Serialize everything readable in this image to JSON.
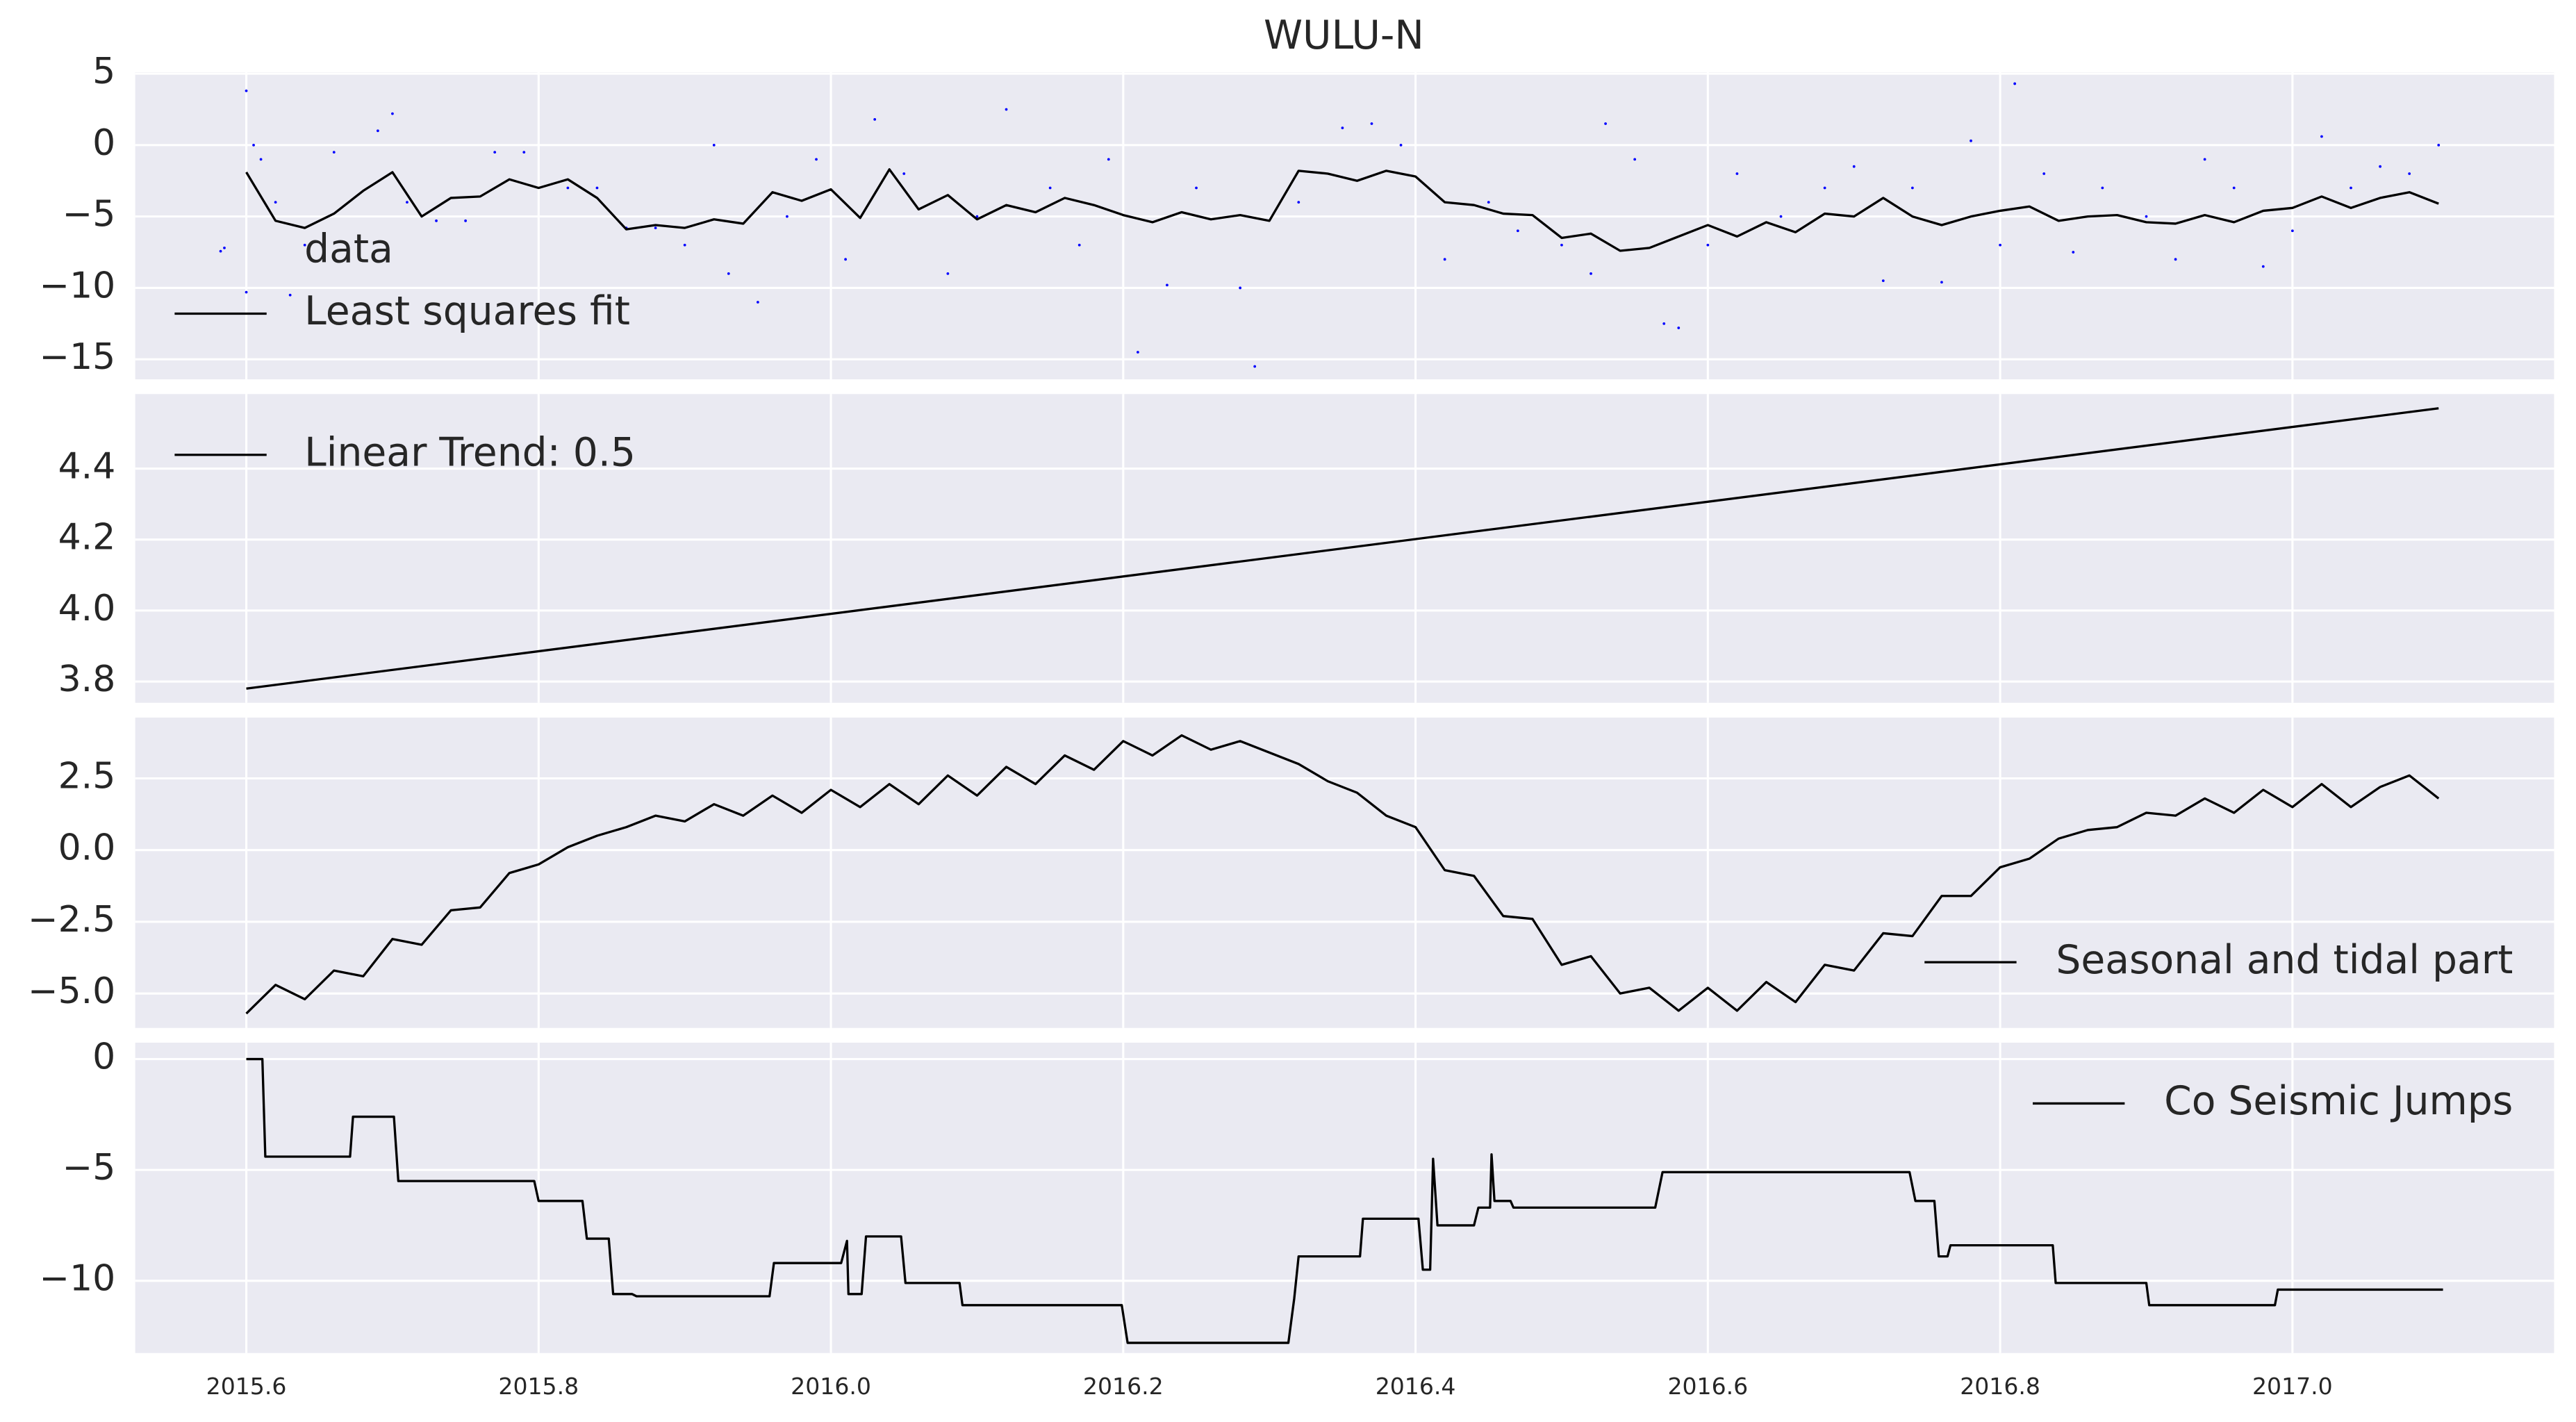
{
  "chart_data": [
    {
      "type": "line",
      "title": "WULU-N",
      "xlim": [
        2015.524,
        2017.179
      ],
      "ylim": [
        -16.4,
        5.1
      ],
      "yticks": [
        5,
        0,
        {
          "value": -5,
          "label": "−5"
        },
        {
          "value": -10,
          "label": "−10"
        },
        {
          "value": -15,
          "label": "−15"
        }
      ],
      "grid": true,
      "legend": "lower left",
      "series": [
        {
          "name": "data",
          "type": "scatter",
          "color": "#0000ff",
          "x": [
            2015.585,
            2015.6,
            2015.6,
            2015.605,
            2015.61,
            2015.62,
            2015.63,
            2015.64,
            2015.66,
            2015.67,
            2015.69,
            2015.7,
            2015.71,
            2015.73,
            2015.75,
            2015.77,
            2015.79,
            2015.82,
            2015.84,
            2015.86,
            2015.88,
            2015.9,
            2015.92,
            2015.93,
            2015.95,
            2015.97,
            2015.99,
            2016.01,
            2016.03,
            2016.05,
            2016.08,
            2016.1,
            2016.12,
            2016.15,
            2016.17,
            2016.19,
            2016.21,
            2016.23,
            2016.25,
            2016.28,
            2016.29,
            2016.32,
            2016.35,
            2016.37,
            2016.39,
            2016.42,
            2016.45,
            2016.47,
            2016.5,
            2016.52,
            2016.53,
            2016.55,
            2016.57,
            2016.58,
            2016.6,
            2016.62,
            2016.65,
            2016.68,
            2016.7,
            2016.72,
            2016.74,
            2016.76,
            2016.78,
            2016.8,
            2016.81,
            2016.83,
            2016.85,
            2016.87,
            2016.9,
            2016.92,
            2016.94,
            2016.96,
            2016.98,
            2017.0,
            2017.02,
            2017.04,
            2017.06,
            2017.08,
            2017.1
          ],
          "values": [
            -7.2,
            3.8,
            -10.3,
            0,
            -1,
            -4,
            -10.5,
            -7,
            -0.5,
            -8,
            1,
            2.2,
            -4,
            -5.3,
            -5.3,
            -0.5,
            -0.5,
            -3,
            -3,
            -5.8,
            -5.8,
            -7,
            0,
            -9,
            -11,
            -5,
            -1,
            -8,
            1.8,
            -2,
            -9,
            -5,
            2.5,
            -3,
            -7,
            -1,
            -14.5,
            -9.8,
            -3,
            -10,
            -15.5,
            -4,
            1.2,
            1.5,
            0,
            -8,
            -4,
            -6,
            -7,
            -9,
            1.5,
            -1,
            -12.5,
            -12.8,
            -7,
            -2,
            -5,
            -3,
            -1.5,
            -9.5,
            -3,
            -9.6,
            0.3,
            -7,
            4.3,
            -2,
            -7.5,
            -3,
            -5,
            -8,
            -1,
            -3,
            -8.5,
            -6,
            0.6,
            -3,
            -1.5,
            -2,
            0
          ]
        },
        {
          "name": "Least squares fit",
          "color": "#000000",
          "x": [
            2015.6,
            2015.62,
            2015.64,
            2015.66,
            2015.68,
            2015.7,
            2015.72,
            2015.74,
            2015.76,
            2015.78,
            2015.8,
            2015.82,
            2015.84,
            2015.86,
            2015.88,
            2015.9,
            2015.92,
            2015.94,
            2015.96,
            2015.98,
            2016.0,
            2016.02,
            2016.04,
            2016.06,
            2016.08,
            2016.1,
            2016.12,
            2016.14,
            2016.16,
            2016.18,
            2016.2,
            2016.22,
            2016.24,
            2016.26,
            2016.28,
            2016.3,
            2016.32,
            2016.34,
            2016.36,
            2016.38,
            2016.4,
            2016.42,
            2016.44,
            2016.46,
            2016.48,
            2016.5,
            2016.52,
            2016.54,
            2016.56,
            2016.58,
            2016.6,
            2016.62,
            2016.64,
            2016.66,
            2016.68,
            2016.7,
            2016.72,
            2016.74,
            2016.76,
            2016.78,
            2016.8,
            2016.82,
            2016.84,
            2016.86,
            2016.88,
            2016.9,
            2016.92,
            2016.94,
            2016.96,
            2016.98,
            2017.0,
            2017.02,
            2017.04,
            2017.06,
            2017.08,
            2017.1
          ],
          "values": [
            -1.9,
            -5.3,
            -5.8,
            -4.8,
            -3.2,
            -1.9,
            -5.0,
            -3.7,
            -3.6,
            -2.4,
            -3.0,
            -2.4,
            -3.7,
            -5.9,
            -5.6,
            -5.8,
            -5.2,
            -5.5,
            -3.3,
            -3.9,
            -3.1,
            -5.1,
            -1.7,
            -4.5,
            -3.5,
            -5.2,
            -4.2,
            -4.7,
            -3.7,
            -4.2,
            -4.9,
            -5.4,
            -4.7,
            -5.2,
            -4.9,
            -5.3,
            -1.8,
            -2.0,
            -2.5,
            -1.8,
            -2.2,
            -4.0,
            -4.2,
            -4.8,
            -4.9,
            -6.5,
            -6.2,
            -7.4,
            -7.2,
            -6.4,
            -5.6,
            -6.4,
            -5.4,
            -6.1,
            -4.8,
            -5.0,
            -3.7,
            -5.0,
            -5.6,
            -5.0,
            -4.6,
            -4.3,
            -5.3,
            -5.0,
            -4.9,
            -5.4,
            -5.5,
            -4.9,
            -5.4,
            -4.6,
            -4.4,
            -3.6,
            -4.4,
            -3.7,
            -3.3,
            -4.1
          ]
        }
      ]
    },
    {
      "type": "line",
      "xlim": [
        2015.524,
        2017.179
      ],
      "ylim": [
        3.74,
        4.61
      ],
      "yticks": [
        3.8,
        {
          "value": 4,
          "label": "4.0"
        },
        4.2,
        4.4
      ],
      "grid": true,
      "legend": "upper left",
      "series": [
        {
          "name": "Linear Trend: 0.5",
          "color": "#000000",
          "x": [
            2015.6,
            2017.1
          ],
          "values": [
            3.78,
            4.57
          ]
        }
      ]
    },
    {
      "type": "line",
      "xlim": [
        2015.524,
        2017.179
      ],
      "ylim": [
        -6.2,
        4.62
      ],
      "yticks": [
        {
          "value": -5,
          "label": "−5.0"
        },
        {
          "value": -2.5,
          "label": "−2.5"
        },
        {
          "value": 0,
          "label": "0.0"
        },
        2.5
      ],
      "grid": true,
      "legend": "lower right",
      "series": [
        {
          "name": "Seasonal and tidal part",
          "color": "#000000",
          "x": [
            2015.6,
            2015.62,
            2015.64,
            2015.66,
            2015.68,
            2015.7,
            2015.72,
            2015.74,
            2015.76,
            2015.78,
            2015.8,
            2015.82,
            2015.84,
            2015.86,
            2015.88,
            2015.9,
            2015.92,
            2015.94,
            2015.96,
            2015.98,
            2016.0,
            2016.02,
            2016.04,
            2016.06,
            2016.08,
            2016.1,
            2016.12,
            2016.14,
            2016.16,
            2016.18,
            2016.2,
            2016.22,
            2016.24,
            2016.26,
            2016.28,
            2016.3,
            2016.32,
            2016.34,
            2016.36,
            2016.38,
            2016.4,
            2016.42,
            2016.44,
            2016.46,
            2016.48,
            2016.5,
            2016.52,
            2016.54,
            2016.56,
            2016.58,
            2016.6,
            2016.62,
            2016.64,
            2016.66,
            2016.68,
            2016.7,
            2016.72,
            2016.74,
            2016.76,
            2016.78,
            2016.8,
            2016.82,
            2016.84,
            2016.86,
            2016.88,
            2016.9,
            2016.92,
            2016.94,
            2016.96,
            2016.98,
            2017.0,
            2017.02,
            2017.04,
            2017.06,
            2017.08,
            2017.1
          ],
          "values": [
            -5.7,
            -4.7,
            -5.2,
            -4.2,
            -4.4,
            -3.1,
            -3.3,
            -2.1,
            -2.0,
            -0.8,
            -0.5,
            0.1,
            0.5,
            0.8,
            1.2,
            1.0,
            1.6,
            1.2,
            1.9,
            1.3,
            2.1,
            1.5,
            2.3,
            1.6,
            2.6,
            1.9,
            2.9,
            2.3,
            3.3,
            2.8,
            3.8,
            3.3,
            4.0,
            3.5,
            3.8,
            3.4,
            3.0,
            2.4,
            2.0,
            1.2,
            0.8,
            -0.7,
            -0.9,
            -2.3,
            -2.4,
            -4.0,
            -3.7,
            -5.0,
            -4.8,
            -5.6,
            -4.8,
            -5.6,
            -4.6,
            -5.3,
            -4.0,
            -4.2,
            -2.9,
            -3.0,
            -1.6,
            -1.6,
            -0.6,
            -0.3,
            0.4,
            0.7,
            0.8,
            1.3,
            1.2,
            1.8,
            1.3,
            2.1,
            1.5,
            2.3,
            1.5,
            2.2,
            2.6,
            1.8
          ]
        }
      ]
    },
    {
      "type": "line",
      "xlim": [
        2015.524,
        2017.179
      ],
      "ylim": [
        -13.26,
        0.74
      ],
      "yticks": [
        {
          "value": -10,
          "label": "−10"
        },
        {
          "value": -5,
          "label": "−5"
        },
        0
      ],
      "grid": true,
      "legend": "upper right",
      "xticks": [
        2015.6,
        2015.8,
        {
          "value": 2016,
          "label": "2016.0"
        },
        2016.2,
        2016.4,
        2016.6,
        2016.8,
        {
          "value": 2017,
          "label": "2017.0"
        }
      ],
      "series": [
        {
          "name": "Co Seismic Jumps",
          "color": "#000000",
          "x": [
            2015.6,
            2015.611,
            2015.613,
            2015.671,
            2015.673,
            2015.701,
            2015.704,
            2015.797,
            2015.8,
            2015.83,
            2015.833,
            2015.848,
            2015.851,
            2015.864,
            2015.867,
            2015.958,
            2015.961,
            2016.007,
            2016.011,
            2016.012,
            2016.021,
            2016.024,
            2016.048,
            2016.051,
            2016.088,
            2016.09,
            2016.199,
            2016.203,
            2016.313,
            2016.317,
            2016.32,
            2016.362,
            2016.364,
            2016.402,
            2016.405,
            2016.41,
            2016.412,
            2016.415,
            2016.44,
            2016.443,
            2016.451,
            2016.452,
            2016.454,
            2016.465,
            2016.467,
            2016.564,
            2016.569,
            2016.738,
            2016.742,
            2016.755,
            2016.758,
            2016.764,
            2016.766,
            2016.836,
            2016.838,
            2016.9,
            2016.902,
            2016.988,
            2016.99,
            2017.103
          ],
          "values": [
            0,
            0,
            -4.4,
            -4.4,
            -2.6,
            -2.6,
            -5.5,
            -5.5,
            -6.4,
            -6.4,
            -8.1,
            -8.1,
            -10.6,
            -10.6,
            -10.7,
            -10.7,
            -9.2,
            -9.2,
            -8.2,
            -10.6,
            -10.6,
            -8,
            -8,
            -10.1,
            -10.1,
            -11.1,
            -11.1,
            -12.8,
            -12.8,
            -10.8,
            -8.9,
            -8.9,
            -7.2,
            -7.2,
            -9.5,
            -9.5,
            -4.5,
            -7.5,
            -7.5,
            -6.7,
            -6.7,
            -4.3,
            -6.4,
            -6.4,
            -6.7,
            -6.7,
            -5.1,
            -5.1,
            -6.4,
            -6.4,
            -8.9,
            -8.9,
            -8.4,
            -8.4,
            -10.1,
            -10.1,
            -11.1,
            -11.1,
            -10.4,
            -10.4
          ]
        }
      ]
    }
  ]
}
